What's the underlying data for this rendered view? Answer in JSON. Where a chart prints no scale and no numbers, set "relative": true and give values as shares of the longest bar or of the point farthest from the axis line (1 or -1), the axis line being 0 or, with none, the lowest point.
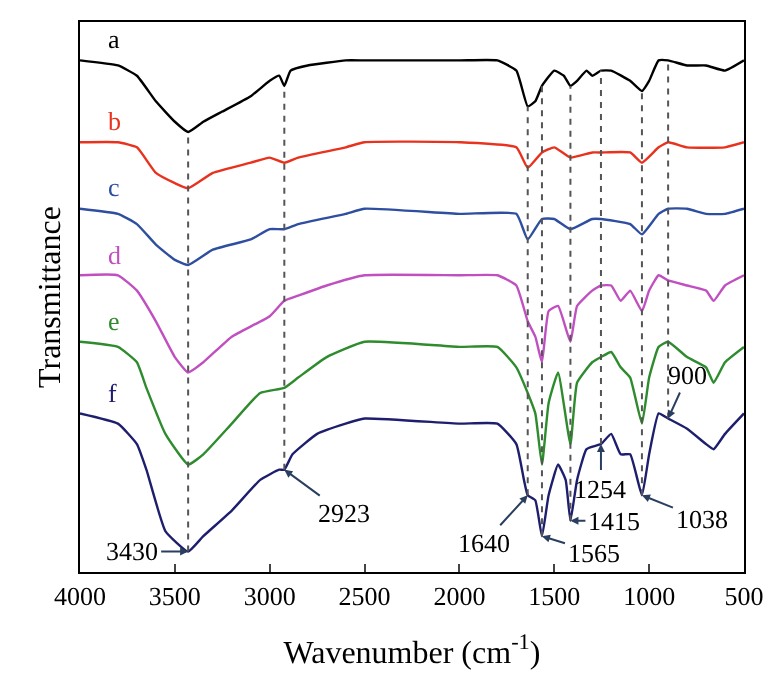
{
  "chart_data": {
    "type": "line",
    "relative": true,
    "xlabel": "Wavenumber (cm$^{-1}$)",
    "ylabel": "Transmittance",
    "xlim": [
      4000,
      500
    ],
    "xticks": [
      4000,
      3500,
      3000,
      2500,
      2000,
      1500,
      1000,
      500
    ],
    "legend": false,
    "line_style": "solid",
    "tick_labels": "x",
    "series": [
      {
        "name": "a",
        "color": "#000000",
        "x": [
          4000,
          3800,
          3700,
          3600,
          3500,
          3430,
          3350,
          3250,
          3100,
          3000,
          2950,
          2923,
          2890,
          2800,
          2600,
          2500,
          2000,
          1800,
          1700,
          1640,
          1600,
          1565,
          1500,
          1450,
          1415,
          1380,
          1330,
          1300,
          1254,
          1200,
          1100,
          1038,
          1000,
          950,
          900,
          800,
          700,
          600,
          500
        ],
        "values": [
          1.0,
          0.99,
          0.97,
          0.92,
          0.88,
          0.86,
          0.88,
          0.9,
          0.93,
          0.96,
          0.97,
          0.95,
          0.98,
          0.99,
          1.0,
          1.0,
          1.0,
          1.0,
          0.98,
          0.91,
          0.92,
          0.95,
          0.98,
          0.97,
          0.95,
          0.96,
          0.98,
          0.97,
          0.98,
          0.98,
          0.96,
          0.94,
          0.96,
          1.0,
          1.0,
          0.99,
          0.99,
          0.98,
          1.0
        ]
      },
      {
        "name": "b",
        "color": "#e8321e",
        "x": [
          4000,
          3800,
          3700,
          3600,
          3500,
          3430,
          3300,
          3100,
          3000,
          2923,
          2850,
          2600,
          2500,
          2000,
          1700,
          1640,
          1565,
          1500,
          1415,
          1300,
          1254,
          1100,
          1038,
          950,
          900,
          800,
          600,
          500
        ],
        "values": [
          0.84,
          0.84,
          0.83,
          0.78,
          0.76,
          0.75,
          0.78,
          0.8,
          0.81,
          0.8,
          0.81,
          0.83,
          0.84,
          0.84,
          0.83,
          0.79,
          0.82,
          0.83,
          0.81,
          0.82,
          0.82,
          0.82,
          0.8,
          0.83,
          0.84,
          0.83,
          0.83,
          0.84
        ]
      },
      {
        "name": "c",
        "color": "#2e4fa0",
        "x": [
          4000,
          3800,
          3700,
          3600,
          3500,
          3430,
          3300,
          3100,
          3000,
          2923,
          2850,
          2600,
          2500,
          2000,
          1700,
          1640,
          1565,
          1500,
          1415,
          1300,
          1254,
          1100,
          1038,
          950,
          900,
          800,
          700,
          600,
          500
        ],
        "values": [
          0.71,
          0.7,
          0.68,
          0.64,
          0.61,
          0.6,
          0.63,
          0.65,
          0.67,
          0.67,
          0.68,
          0.7,
          0.71,
          0.7,
          0.7,
          0.65,
          0.69,
          0.69,
          0.67,
          0.69,
          0.69,
          0.68,
          0.66,
          0.7,
          0.71,
          0.71,
          0.7,
          0.7,
          0.71
        ]
      },
      {
        "name": "d",
        "color": "#c050c0",
        "x": [
          4000,
          3800,
          3700,
          3600,
          3500,
          3430,
          3350,
          3200,
          3000,
          2923,
          2850,
          2700,
          2500,
          2000,
          1800,
          1700,
          1640,
          1600,
          1565,
          1530,
          1480,
          1415,
          1380,
          1300,
          1254,
          1200,
          1150,
          1100,
          1038,
          1000,
          950,
          900,
          800,
          700,
          660,
          600,
          500
        ],
        "values": [
          0.58,
          0.58,
          0.55,
          0.49,
          0.42,
          0.39,
          0.41,
          0.46,
          0.5,
          0.53,
          0.54,
          0.56,
          0.58,
          0.58,
          0.58,
          0.56,
          0.49,
          0.46,
          0.41,
          0.51,
          0.52,
          0.45,
          0.52,
          0.55,
          0.56,
          0.56,
          0.53,
          0.55,
          0.51,
          0.55,
          0.58,
          0.57,
          0.56,
          0.55,
          0.53,
          0.56,
          0.58
        ]
      },
      {
        "name": "e",
        "color": "#2e8b2e",
        "x": [
          4000,
          3800,
          3700,
          3650,
          3550,
          3430,
          3350,
          3200,
          3050,
          2923,
          2850,
          2700,
          2500,
          2000,
          1800,
          1700,
          1640,
          1600,
          1565,
          1530,
          1480,
          1415,
          1380,
          1300,
          1254,
          1200,
          1150,
          1100,
          1038,
          1000,
          950,
          900,
          800,
          700,
          660,
          600,
          500
        ],
        "values": [
          0.45,
          0.44,
          0.41,
          0.36,
          0.27,
          0.21,
          0.23,
          0.29,
          0.35,
          0.36,
          0.38,
          0.42,
          0.45,
          0.44,
          0.44,
          0.4,
          0.35,
          0.31,
          0.21,
          0.33,
          0.39,
          0.25,
          0.37,
          0.41,
          0.42,
          0.43,
          0.4,
          0.38,
          0.29,
          0.38,
          0.44,
          0.45,
          0.42,
          0.4,
          0.37,
          0.41,
          0.44
        ]
      },
      {
        "name": "f",
        "color": "#1e1e6e",
        "x": [
          4000,
          3800,
          3700,
          3650,
          3550,
          3430,
          3350,
          3200,
          3050,
          2950,
          2923,
          2880,
          2750,
          2600,
          2500,
          2000,
          1800,
          1700,
          1660,
          1640,
          1600,
          1565,
          1530,
          1480,
          1440,
          1415,
          1380,
          1330,
          1254,
          1200,
          1150,
          1100,
          1038,
          1000,
          950,
          900,
          800,
          700,
          660,
          600,
          500
        ],
        "values": [
          0.31,
          0.29,
          0.25,
          0.2,
          0.08,
          0.04,
          0.07,
          0.12,
          0.18,
          0.2,
          0.2,
          0.23,
          0.27,
          0.29,
          0.3,
          0.29,
          0.29,
          0.25,
          0.18,
          0.15,
          0.14,
          0.07,
          0.15,
          0.21,
          0.18,
          0.1,
          0.18,
          0.24,
          0.25,
          0.27,
          0.23,
          0.23,
          0.15,
          0.23,
          0.31,
          0.3,
          0.28,
          0.25,
          0.24,
          0.27,
          0.31
        ]
      }
    ],
    "ref_lines": [
      {
        "axis": "x",
        "value": 3430,
        "color": "#555555",
        "line_style": "dotted"
      },
      {
        "axis": "x",
        "value": 2923,
        "color": "#555555",
        "line_style": "dotted"
      },
      {
        "axis": "x",
        "value": 1640,
        "color": "#555555",
        "line_style": "dotted"
      },
      {
        "axis": "x",
        "value": 1565,
        "color": "#555555",
        "line_style": "dotted"
      },
      {
        "axis": "x",
        "value": 1415,
        "color": "#555555",
        "line_style": "dotted"
      },
      {
        "axis": "x",
        "value": 1254,
        "color": "#555555",
        "line_style": "dotted"
      },
      {
        "axis": "x",
        "value": 1038,
        "color": "#555555",
        "line_style": "dotted"
      },
      {
        "axis": "x",
        "value": 900,
        "color": "#555555",
        "line_style": "dotted"
      }
    ],
    "annotations": [
      {
        "text": "3430",
        "x": 3430,
        "y": 0.04
      },
      {
        "text": "2923",
        "x": 2923,
        "y": 0.2
      },
      {
        "text": "1640",
        "x": 1640,
        "y": 0.15
      },
      {
        "text": "1565",
        "x": 1565,
        "y": 0.07
      },
      {
        "text": "1415",
        "x": 1415,
        "y": 0.1
      },
      {
        "text": "1254",
        "x": 1254,
        "y": 0.25
      },
      {
        "text": "1038",
        "x": 1038,
        "y": 0.15
      },
      {
        "text": "900",
        "x": 900,
        "y": 0.3
      }
    ]
  }
}
